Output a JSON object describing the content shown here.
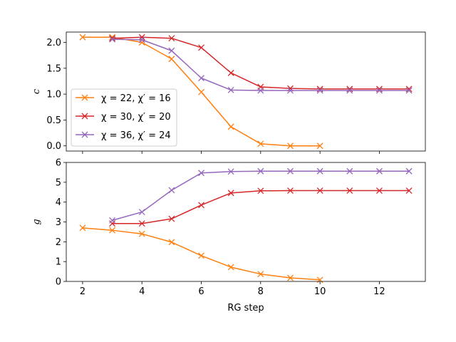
{
  "chart_data": [
    {
      "type": "line",
      "panel": "top",
      "xlabel": "",
      "ylabel": "c",
      "xlim": [
        1.45,
        13.55
      ],
      "ylim": [
        -0.1,
        2.2
      ],
      "xticks": [
        2,
        4,
        6,
        8,
        10,
        12
      ],
      "xtick_labels_visible": false,
      "yticks": [
        0.0,
        0.5,
        1.0,
        1.5,
        2.0
      ],
      "ytick_labels": [
        "0.0",
        "0.5",
        "1.0",
        "1.5",
        "2.0"
      ],
      "legend_location": "lower-left",
      "series": [
        {
          "name": "χ = 22, χ′ = 16",
          "color": "#ff7f0e",
          "x": [
            2,
            3,
            4,
            5,
            6,
            7,
            8,
            9,
            10
          ],
          "y": [
            2.1,
            2.1,
            2.0,
            1.68,
            1.04,
            0.37,
            0.04,
            0.0,
            0.0
          ]
        },
        {
          "name": "χ = 30, χ′ = 20",
          "color": "#d62728",
          "x": [
            3,
            4,
            5,
            6,
            7,
            8,
            9,
            10,
            11,
            12,
            13
          ],
          "y": [
            2.08,
            2.1,
            2.08,
            1.9,
            1.41,
            1.14,
            1.11,
            1.1,
            1.1,
            1.1,
            1.1
          ]
        },
        {
          "name": "χ = 36, χ′ = 24",
          "color": "#9467bd",
          "x": [
            3,
            4,
            5,
            6,
            7,
            8,
            9,
            10,
            11,
            12,
            13
          ],
          "y": [
            2.06,
            2.05,
            1.84,
            1.31,
            1.08,
            1.07,
            1.07,
            1.07,
            1.07,
            1.07,
            1.07
          ]
        }
      ]
    },
    {
      "type": "line",
      "panel": "bottom",
      "xlabel": "RG step",
      "ylabel": "g",
      "xlim": [
        1.45,
        13.55
      ],
      "ylim": [
        0,
        6
      ],
      "xticks": [
        2,
        4,
        6,
        8,
        10,
        12
      ],
      "xtick_labels": [
        "2",
        "4",
        "6",
        "8",
        "10",
        "12"
      ],
      "yticks": [
        0,
        1,
        2,
        3,
        4,
        5,
        6
      ],
      "ytick_labels": [
        "0",
        "1",
        "2",
        "3",
        "4",
        "5",
        "6"
      ],
      "series": [
        {
          "name": "χ = 22, χ′ = 16",
          "color": "#ff7f0e",
          "x": [
            2,
            3,
            4,
            5,
            6,
            7,
            8,
            9,
            10
          ],
          "y": [
            2.7,
            2.58,
            2.4,
            1.98,
            1.3,
            0.72,
            0.37,
            0.18,
            0.08
          ]
        },
        {
          "name": "χ = 30, χ′ = 20",
          "color": "#d62728",
          "x": [
            3,
            4,
            5,
            6,
            7,
            8,
            9,
            10,
            11,
            12,
            13
          ],
          "y": [
            2.92,
            2.92,
            3.16,
            3.85,
            4.46,
            4.57,
            4.58,
            4.58,
            4.58,
            4.58,
            4.58
          ]
        },
        {
          "name": "χ = 36, χ′ = 24",
          "color": "#9467bd",
          "x": [
            3,
            4,
            5,
            6,
            7,
            8,
            9,
            10,
            11,
            12,
            13
          ],
          "y": [
            3.08,
            3.5,
            4.6,
            5.47,
            5.54,
            5.56,
            5.56,
            5.56,
            5.56,
            5.56,
            5.56
          ]
        }
      ]
    }
  ]
}
